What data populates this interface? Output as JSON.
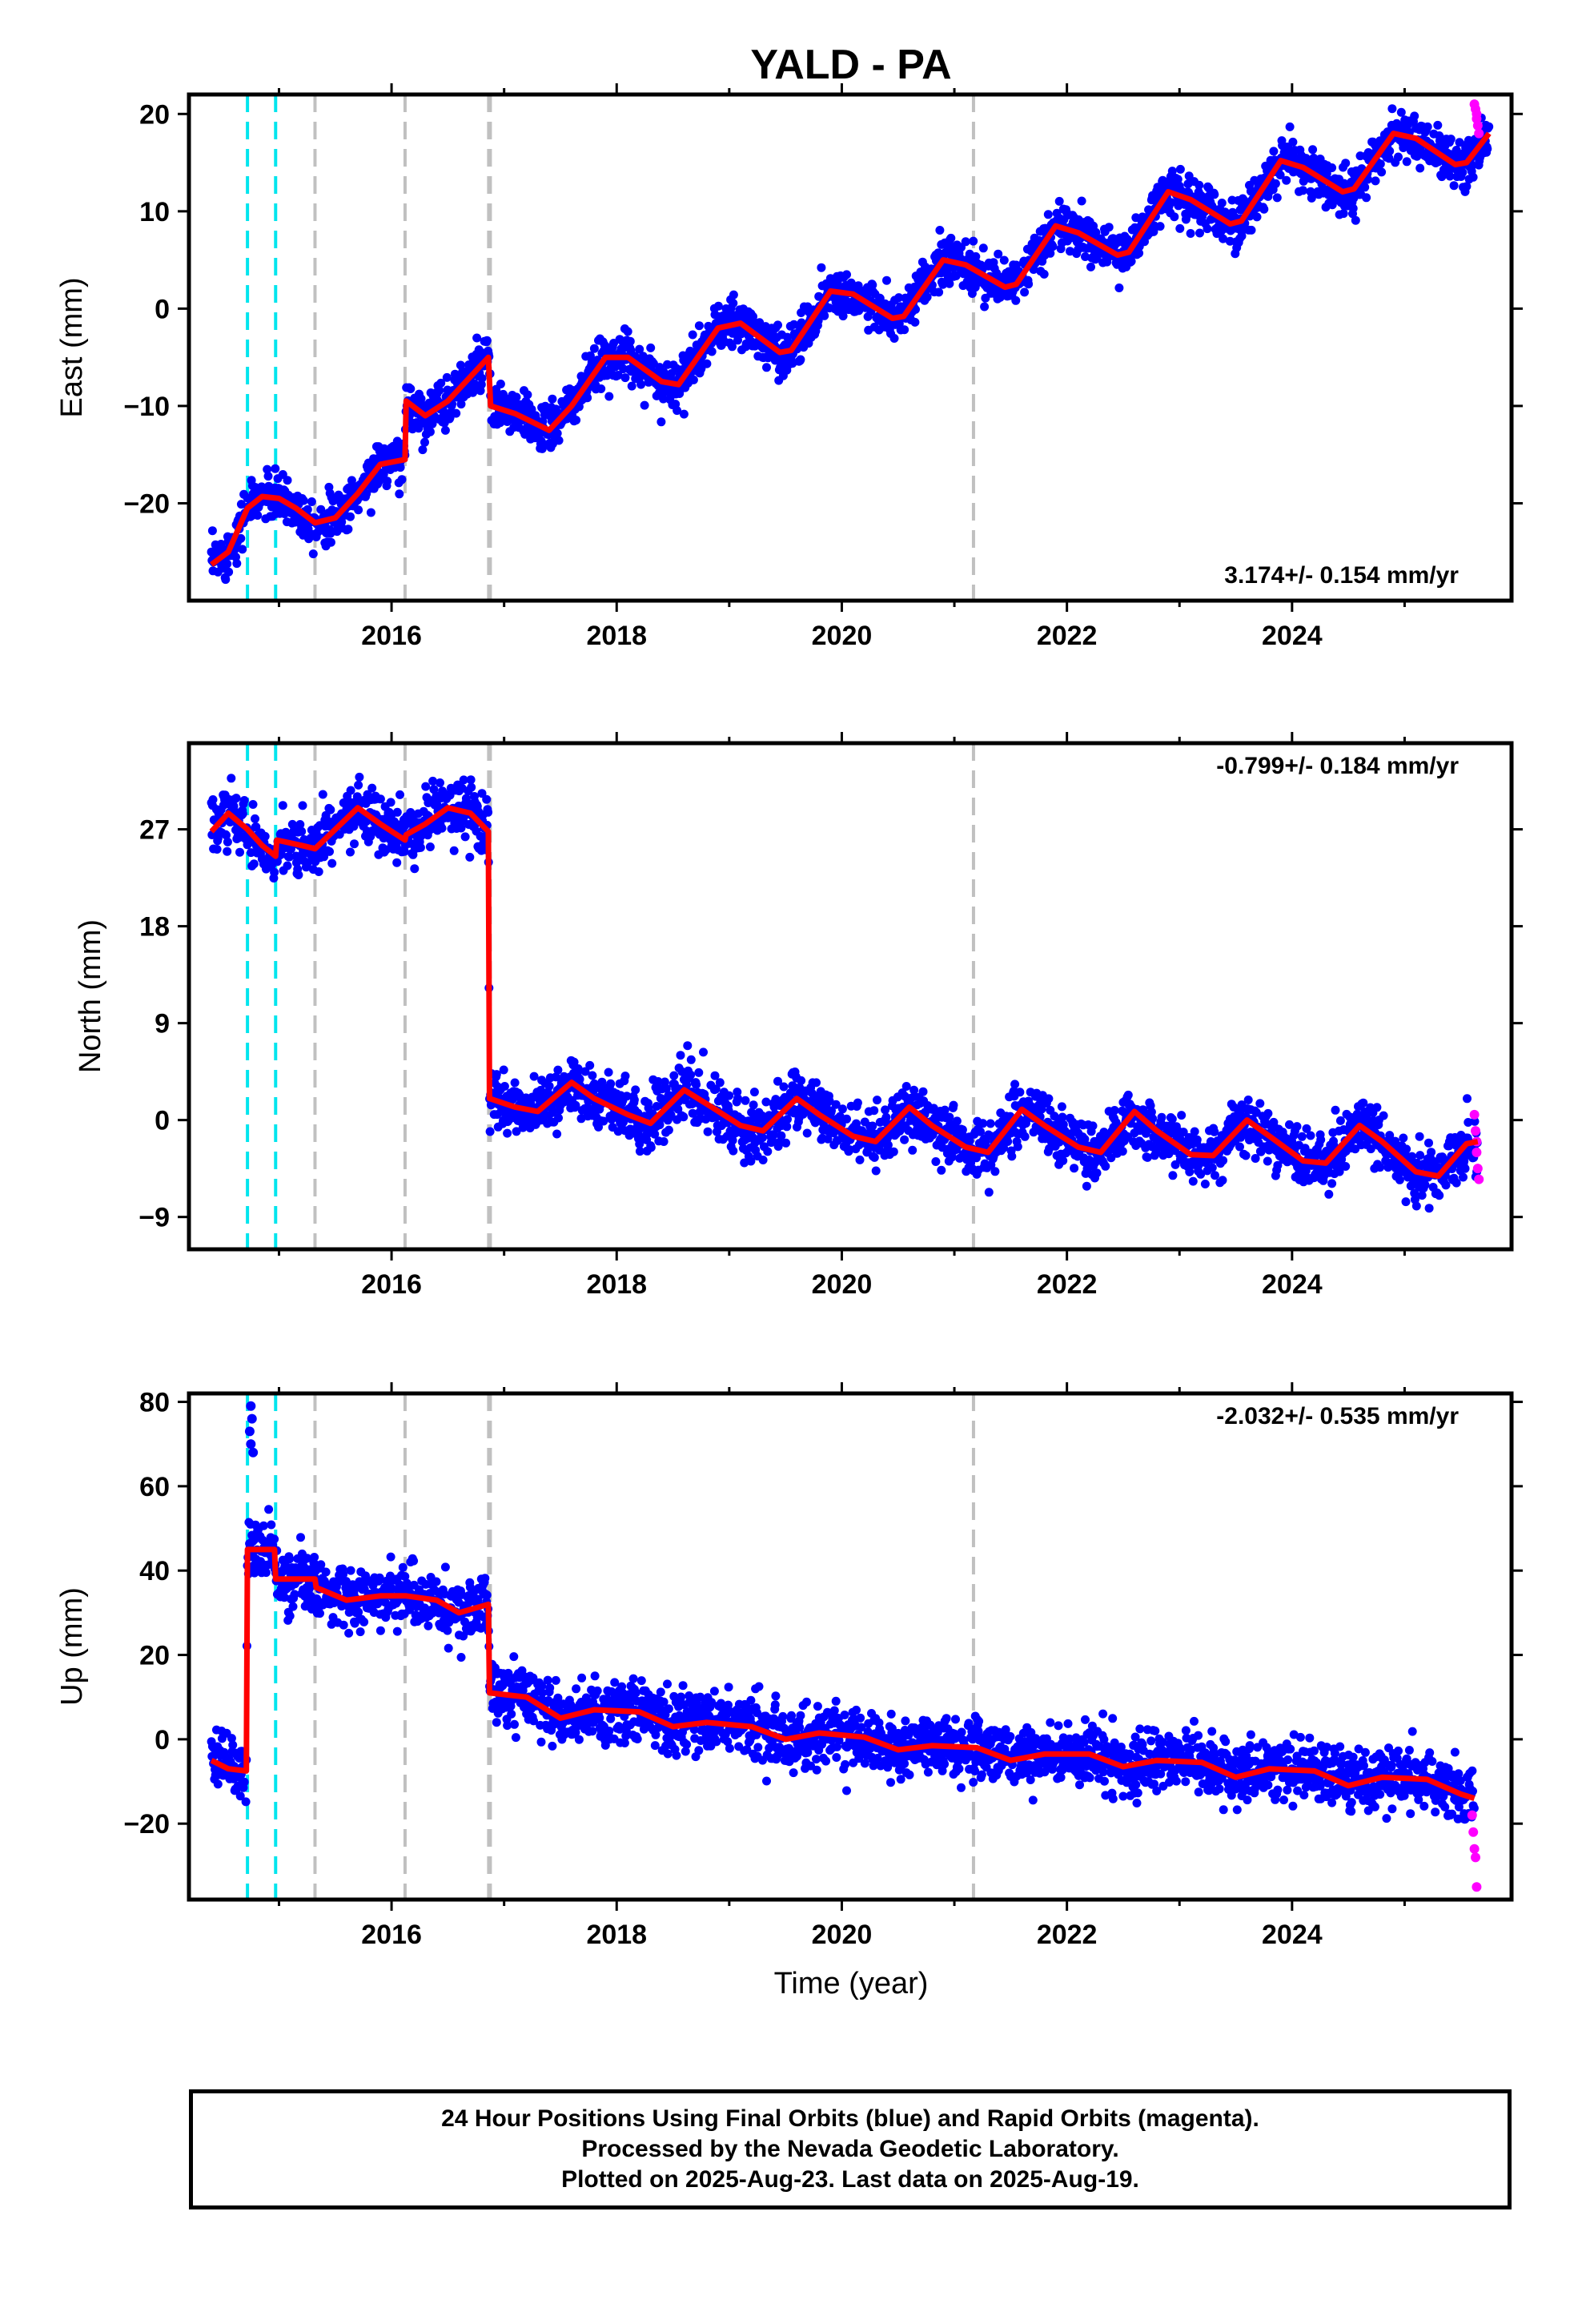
{
  "title": "YALD - PA",
  "xlabel": "Time (year)",
  "footer": {
    "line1": "24 Hour Positions Using Final Orbits (blue) and Rapid Orbits (magenta).",
    "line2": "Processed by the Nevada Geodetic Laboratory.",
    "line3": "Plotted on 2025-Aug-23. Last data on 2025-Aug-19."
  },
  "colors": {
    "final_orbits": "#0000ff",
    "rapid_orbits": "#ff00ff",
    "model": "#ff0000",
    "antenna_change": "#00e5ee",
    "equipment_change": "#c0c0c0"
  },
  "chart_data": [
    {
      "type": "scatter",
      "component": "East",
      "ylabel": "East (mm)",
      "xlim": [
        2014.2,
        2025.95
      ],
      "ylim": [
        -30,
        22
      ],
      "yticks": [
        20,
        10,
        0,
        -10,
        -20
      ],
      "xticks": [
        2016,
        2018,
        2020,
        2022,
        2024
      ],
      "rate_annotation": "3.174+/- 0.154 mm/yr",
      "rate_position": "bottom-right",
      "rate": 3.174,
      "cyan_lines": [
        2014.72,
        2014.97
      ],
      "gray_lines": [
        2015.32,
        2016.12,
        2016.87,
        2021.17
      ],
      "model_points": [
        [
          2014.4,
          -26.3
        ],
        [
          2014.55,
          -25
        ],
        [
          2014.72,
          -20.5
        ],
        [
          2014.85,
          -19.3
        ],
        [
          2015.0,
          -19.5
        ],
        [
          2015.15,
          -20.5
        ],
        [
          2015.32,
          -22
        ],
        [
          2015.5,
          -21.5
        ],
        [
          2015.7,
          -19
        ],
        [
          2015.9,
          -16
        ],
        [
          2016.12,
          -15.5
        ],
        [
          2016.13,
          -9.5
        ],
        [
          2016.3,
          -11
        ],
        [
          2016.5,
          -9.5
        ],
        [
          2016.7,
          -7
        ],
        [
          2016.86,
          -5
        ],
        [
          2016.88,
          -10
        ],
        [
          2017.1,
          -10.8
        ],
        [
          2017.4,
          -12.5
        ],
        [
          2017.6,
          -10
        ],
        [
          2017.9,
          -5
        ],
        [
          2018.1,
          -5
        ],
        [
          2018.4,
          -7.5
        ],
        [
          2018.55,
          -7.8
        ],
        [
          2018.9,
          -2
        ],
        [
          2019.1,
          -1.5
        ],
        [
          2019.45,
          -4.5
        ],
        [
          2019.55,
          -4.3
        ],
        [
          2019.9,
          1.8
        ],
        [
          2020.1,
          1.5
        ],
        [
          2020.45,
          -1
        ],
        [
          2020.55,
          -0.8
        ],
        [
          2020.9,
          5
        ],
        [
          2021.1,
          4.5
        ],
        [
          2021.45,
          2.2
        ],
        [
          2021.55,
          2.5
        ],
        [
          2021.9,
          8.5
        ],
        [
          2022.1,
          7.8
        ],
        [
          2022.45,
          5.5
        ],
        [
          2022.55,
          5.8
        ],
        [
          2022.9,
          12
        ],
        [
          2023.1,
          11.2
        ],
        [
          2023.45,
          8.7
        ],
        [
          2023.55,
          9
        ],
        [
          2023.9,
          15.2
        ],
        [
          2024.1,
          14.5
        ],
        [
          2024.45,
          12
        ],
        [
          2024.55,
          12.3
        ],
        [
          2024.9,
          18
        ],
        [
          2025.1,
          17.5
        ],
        [
          2025.45,
          14.8
        ],
        [
          2025.55,
          15
        ],
        [
          2025.75,
          18
        ]
      ],
      "scatter_sigma": 1.2,
      "rapid_points": [
        [
          2025.62,
          21
        ],
        [
          2025.63,
          20.5
        ],
        [
          2025.64,
          20
        ],
        [
          2025.64,
          19.5
        ],
        [
          2025.65,
          18.8
        ],
        [
          2025.66,
          18
        ]
      ]
    },
    {
      "type": "scatter",
      "component": "North",
      "ylabel": "North (mm)",
      "xlim": [
        2014.2,
        2025.95
      ],
      "ylim": [
        -12,
        35
      ],
      "yticks": [
        27,
        18,
        9,
        0,
        -9
      ],
      "xticks": [
        2016,
        2018,
        2020,
        2022,
        2024
      ],
      "rate_annotation": "-0.799+/- 0.184 mm/yr",
      "rate_position": "top-right",
      "rate": -0.799,
      "cyan_lines": [
        2014.72,
        2014.97
      ],
      "gray_lines": [
        2015.32,
        2016.12,
        2016.87,
        2021.17
      ],
      "model_points": [
        [
          2014.4,
          26.8
        ],
        [
          2014.55,
          28.5
        ],
        [
          2014.72,
          27
        ],
        [
          2014.85,
          25.5
        ],
        [
          2014.97,
          24.5
        ],
        [
          2014.98,
          26
        ],
        [
          2015.2,
          25.5
        ],
        [
          2015.32,
          25.2
        ],
        [
          2015.5,
          27
        ],
        [
          2015.7,
          29
        ],
        [
          2015.9,
          27.5
        ],
        [
          2016.12,
          26
        ],
        [
          2016.13,
          26.5
        ],
        [
          2016.3,
          27.5
        ],
        [
          2016.5,
          29
        ],
        [
          2016.7,
          28.5
        ],
        [
          2016.86,
          26.8
        ],
        [
          2016.87,
          2
        ],
        [
          2017.1,
          1.2
        ],
        [
          2017.3,
          0.8
        ],
        [
          2017.6,
          3.5
        ],
        [
          2017.8,
          2
        ],
        [
          2018.1,
          0.5
        ],
        [
          2018.3,
          -0.3
        ],
        [
          2018.6,
          2.8
        ],
        [
          2018.8,
          1.5
        ],
        [
          2019.1,
          -0.5
        ],
        [
          2019.3,
          -1
        ],
        [
          2019.6,
          2
        ],
        [
          2019.8,
          0.5
        ],
        [
          2020.1,
          -1.5
        ],
        [
          2020.3,
          -2
        ],
        [
          2020.6,
          1.2
        ],
        [
          2020.8,
          -0.5
        ],
        [
          2021.1,
          -2.5
        ],
        [
          2021.3,
          -3
        ],
        [
          2021.6,
          1
        ],
        [
          2021.8,
          -0.5
        ],
        [
          2022.1,
          -2.5
        ],
        [
          2022.3,
          -3
        ],
        [
          2022.6,
          0.8
        ],
        [
          2022.8,
          -1
        ],
        [
          2023.1,
          -3.2
        ],
        [
          2023.3,
          -3.3
        ],
        [
          2023.6,
          0
        ],
        [
          2023.8,
          -1.5
        ],
        [
          2024.1,
          -3.8
        ],
        [
          2024.3,
          -4
        ],
        [
          2024.6,
          -0.5
        ],
        [
          2024.8,
          -2
        ],
        [
          2025.1,
          -4.8
        ],
        [
          2025.3,
          -5.2
        ],
        [
          2025.55,
          -2.2
        ],
        [
          2025.65,
          -2
        ]
      ],
      "scatter_sigma": 1.3,
      "rapid_points": [
        [
          2025.62,
          0.5
        ],
        [
          2025.63,
          -1
        ],
        [
          2025.64,
          -2
        ],
        [
          2025.64,
          -3
        ],
        [
          2025.65,
          -4.5
        ],
        [
          2025.66,
          -5.5
        ]
      ]
    },
    {
      "type": "scatter",
      "component": "Up",
      "ylabel": "Up (mm)",
      "xlim": [
        2014.2,
        2025.95
      ],
      "ylim": [
        -38,
        82
      ],
      "yticks": [
        80,
        60,
        40,
        20,
        0,
        -20
      ],
      "xticks": [
        2016,
        2018,
        2020,
        2022,
        2024
      ],
      "rate_annotation": "-2.032+/- 0.535 mm/yr",
      "rate_position": "top-right",
      "rate": -2.032,
      "cyan_lines": [
        2014.72,
        2014.97
      ],
      "gray_lines": [
        2015.32,
        2016.12,
        2016.87,
        2021.17
      ],
      "model_points": [
        [
          2014.4,
          -5
        ],
        [
          2014.55,
          -7
        ],
        [
          2014.71,
          -7.5
        ],
        [
          2014.72,
          45
        ],
        [
          2014.96,
          45
        ],
        [
          2014.97,
          38
        ],
        [
          2015.32,
          38
        ],
        [
          2015.33,
          36
        ],
        [
          2015.6,
          33
        ],
        [
          2015.9,
          34
        ],
        [
          2016.12,
          34
        ],
        [
          2016.13,
          34
        ],
        [
          2016.4,
          33
        ],
        [
          2016.6,
          30
        ],
        [
          2016.86,
          32
        ],
        [
          2016.87,
          11
        ],
        [
          2017.2,
          10
        ],
        [
          2017.5,
          5
        ],
        [
          2017.8,
          7
        ],
        [
          2018.2,
          6.5
        ],
        [
          2018.5,
          3
        ],
        [
          2018.8,
          4
        ],
        [
          2019.2,
          3
        ],
        [
          2019.5,
          0
        ],
        [
          2019.8,
          1.5
        ],
        [
          2020.2,
          0.5
        ],
        [
          2020.5,
          -2.5
        ],
        [
          2020.8,
          -1.5
        ],
        [
          2021.2,
          -2
        ],
        [
          2021.5,
          -5
        ],
        [
          2021.8,
          -3.5
        ],
        [
          2022.2,
          -3.5
        ],
        [
          2022.5,
          -6.5
        ],
        [
          2022.8,
          -5
        ],
        [
          2023.2,
          -5.5
        ],
        [
          2023.5,
          -9
        ],
        [
          2023.8,
          -7
        ],
        [
          2024.2,
          -7.5
        ],
        [
          2024.5,
          -11
        ],
        [
          2024.8,
          -9
        ],
        [
          2025.2,
          -9.5
        ],
        [
          2025.5,
          -13
        ],
        [
          2025.62,
          -14
        ]
      ],
      "scatter_sigma": 3.5,
      "outliers": [
        [
          2014.75,
          79
        ],
        [
          2014.76,
          76
        ],
        [
          2014.74,
          73
        ],
        [
          2014.75,
          70
        ],
        [
          2014.77,
          68
        ]
      ],
      "rapid_points": [
        [
          2025.6,
          -18
        ],
        [
          2025.61,
          -22
        ],
        [
          2025.62,
          -26
        ],
        [
          2025.63,
          -28
        ],
        [
          2025.64,
          -35
        ]
      ]
    }
  ]
}
